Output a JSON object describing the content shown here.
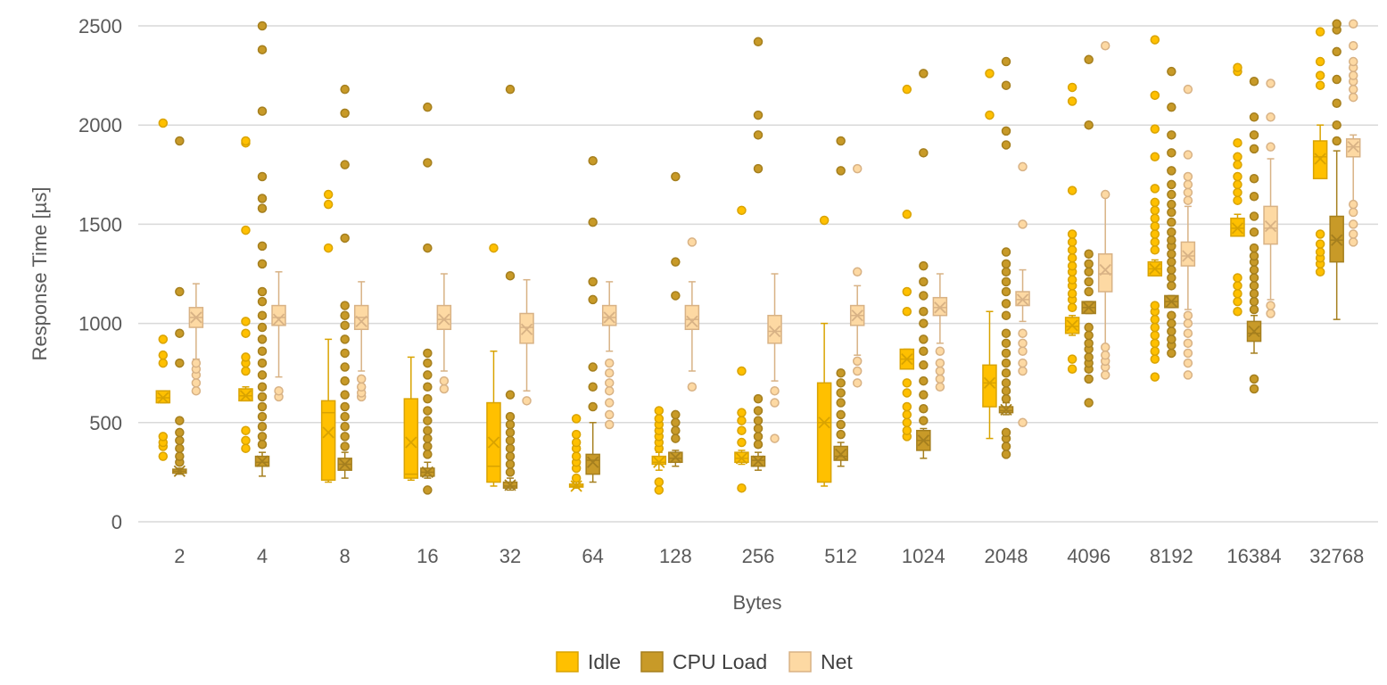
{
  "chart_data": {
    "type": "box",
    "xlabel": "Bytes",
    "ylabel": "Response Time [µs]",
    "ylim": [
      0,
      2500
    ],
    "yticks": [
      0,
      500,
      1000,
      1500,
      2000,
      2500
    ],
    "grid": true,
    "legend_position": "bottom",
    "categories": [
      "2",
      "4",
      "8",
      "16",
      "32",
      "64",
      "128",
      "256",
      "512",
      "1024",
      "2048",
      "4096",
      "8192",
      "16384",
      "32768"
    ],
    "series": [
      {
        "name": "Idle",
        "fill": "#ffc000",
        "stroke": "#d9a300",
        "boxes": [
          {
            "whisker_low": 600,
            "q1": 600,
            "median": 625,
            "q3": 660,
            "whisker_high": 660,
            "mean": 625,
            "outliers": [
              330,
              380,
              400,
              430,
              800,
              840,
              920,
              2010
            ]
          },
          {
            "whisker_low": 610,
            "q1": 610,
            "median": 635,
            "q3": 670,
            "whisker_high": 680,
            "mean": 635,
            "outliers": [
              370,
              410,
              460,
              760,
              800,
              830,
              950,
              1010,
              1470,
              1910,
              1920
            ]
          },
          {
            "whisker_low": 200,
            "q1": 210,
            "median": 550,
            "q3": 610,
            "whisker_high": 920,
            "mean": 450,
            "outliers": [
              1380,
              1600,
              1650
            ]
          },
          {
            "whisker_low": 210,
            "q1": 220,
            "median": 240,
            "q3": 620,
            "whisker_high": 830,
            "mean": 400,
            "outliers": []
          },
          {
            "whisker_low": 180,
            "q1": 200,
            "median": 280,
            "q3": 600,
            "whisker_high": 860,
            "mean": 400,
            "outliers": [
              1380
            ]
          },
          {
            "whisker_low": 170,
            "q1": 175,
            "median": 180,
            "q3": 190,
            "whisker_high": 200,
            "mean": 180,
            "outliers": [
              220,
              270,
              300,
              330,
              370,
              400,
              440,
              520
            ]
          },
          {
            "whisker_low": 260,
            "q1": 290,
            "median": 300,
            "q3": 330,
            "whisker_high": 350,
            "mean": 300,
            "outliers": [
              160,
              200,
              370,
              400,
              430,
              460,
              490,
              520,
              560
            ]
          },
          {
            "whisker_low": 290,
            "q1": 300,
            "median": 320,
            "q3": 350,
            "whisker_high": 360,
            "mean": 320,
            "outliers": [
              170,
              400,
              460,
              510,
              550,
              760,
              1570
            ]
          },
          {
            "whisker_low": 180,
            "q1": 200,
            "median": 500,
            "q3": 700,
            "whisker_high": 1000,
            "mean": 500,
            "outliers": [
              1520
            ]
          },
          {
            "whisker_low": 770,
            "q1": 770,
            "median": 820,
            "q3": 870,
            "whisker_high": 870,
            "mean": 820,
            "outliers": [
              430,
              460,
              500,
              540,
              580,
              650,
              700,
              1060,
              1160,
              1550,
              2180
            ]
          },
          {
            "whisker_low": 420,
            "q1": 580,
            "median": 700,
            "q3": 790,
            "whisker_high": 1060,
            "mean": 700,
            "outliers": [
              2050,
              2260
            ]
          },
          {
            "whisker_low": 940,
            "q1": 950,
            "median": 985,
            "q3": 1030,
            "whisker_high": 1040,
            "mean": 990,
            "outliers": [
              770,
              820,
              1080,
              1120,
              1150,
              1190,
              1220,
              1260,
              1290,
              1330,
              1370,
              1410,
              1450,
              1670,
              2120,
              2190
            ]
          },
          {
            "whisker_low": 1240,
            "q1": 1240,
            "median": 1275,
            "q3": 1310,
            "whisker_high": 1320,
            "mean": 1275,
            "outliers": [
              730,
              820,
              860,
              900,
              940,
              980,
              1020,
              1060,
              1090,
              1370,
              1410,
              1450,
              1490,
              1530,
              1570,
              1610,
              1680,
              1840,
              1980,
              2150,
              2430
            ]
          },
          {
            "whisker_low": 1440,
            "q1": 1440,
            "median": 1480,
            "q3": 1530,
            "whisker_high": 1550,
            "mean": 1480,
            "outliers": [
              1060,
              1110,
              1150,
              1190,
              1230,
              1620,
              1660,
              1700,
              1740,
              1800,
              1840,
              1910,
              2270,
              2290
            ]
          },
          {
            "whisker_low": 1730,
            "q1": 1730,
            "median": 1840,
            "q3": 1920,
            "whisker_high": 2000,
            "mean": 1830,
            "outliers": [
              1260,
              1300,
              1330,
              1360,
              1400,
              1450,
              2200,
              2250,
              2320,
              2470
            ]
          }
        ]
      },
      {
        "name": "CPU Load",
        "fill": "#c89a28",
        "stroke": "#a57f1e",
        "boxes": [
          {
            "whisker_low": 240,
            "q1": 245,
            "median": 255,
            "q3": 265,
            "whisker_high": 270,
            "mean": 255,
            "outliers": [
              300,
              330,
              370,
              410,
              450,
              510,
              800,
              950,
              1160,
              1920
            ]
          },
          {
            "whisker_low": 230,
            "q1": 280,
            "median": 300,
            "q3": 330,
            "whisker_high": 350,
            "mean": 305,
            "outliers": [
              390,
              430,
              480,
              530,
              580,
              630,
              680,
              740,
              800,
              860,
              920,
              980,
              1040,
              1110,
              1160,
              1300,
              1390,
              1580,
              1630,
              1740,
              2070,
              2380,
              2500
            ]
          },
          {
            "whisker_low": 220,
            "q1": 260,
            "median": 290,
            "q3": 320,
            "whisker_high": 350,
            "mean": 290,
            "outliers": [
              380,
              430,
              480,
              530,
              580,
              640,
              710,
              780,
              850,
              920,
              990,
              1040,
              1090,
              1430,
              1800,
              2060,
              2180
            ]
          },
          {
            "whisker_low": 220,
            "q1": 230,
            "median": 250,
            "q3": 270,
            "whisker_high": 300,
            "mean": 250,
            "outliers": [
              160,
              340,
              380,
              420,
              460,
              510,
              560,
              620,
              680,
              740,
              800,
              850,
              1380,
              1810,
              2090
            ]
          },
          {
            "whisker_low": 160,
            "q1": 170,
            "median": 180,
            "q3": 200,
            "whisker_high": 220,
            "mean": 185,
            "outliers": [
              250,
              290,
              330,
              370,
              410,
              450,
              490,
              530,
              640,
              1240,
              2180
            ]
          },
          {
            "whisker_low": 200,
            "q1": 240,
            "median": 310,
            "q3": 340,
            "whisker_high": 500,
            "mean": 300,
            "outliers": [
              580,
              680,
              780,
              1120,
              1210,
              1510,
              1820
            ]
          },
          {
            "whisker_low": 280,
            "q1": 300,
            "median": 320,
            "q3": 350,
            "whisker_high": 360,
            "mean": 325,
            "outliers": [
              420,
              460,
              500,
              540,
              1140,
              1310,
              1740
            ]
          },
          {
            "whisker_low": 260,
            "q1": 280,
            "median": 310,
            "q3": 330,
            "whisker_high": 350,
            "mean": 305,
            "outliers": [
              390,
              430,
              470,
              510,
              560,
              620,
              1780,
              1950,
              2050,
              2420
            ]
          },
          {
            "whisker_low": 280,
            "q1": 310,
            "median": 330,
            "q3": 380,
            "whisker_high": 400,
            "mean": 340,
            "outliers": [
              440,
              490,
              540,
              600,
              650,
              700,
              750,
              1770,
              1920
            ]
          },
          {
            "whisker_low": 320,
            "q1": 360,
            "median": 410,
            "q3": 460,
            "whisker_high": 470,
            "mean": 410,
            "outliers": [
              510,
              570,
              640,
              710,
              790,
              860,
              920,
              1000,
              1060,
              1140,
              1210,
              1290,
              1860,
              2260
            ]
          },
          {
            "whisker_low": 540,
            "q1": 550,
            "median": 560,
            "q3": 580,
            "whisker_high": 600,
            "mean": 565,
            "outliers": [
              340,
              380,
              420,
              450,
              620,
              660,
              700,
              750,
              800,
              850,
              900,
              950,
              1040,
              1100,
              1160,
              1210,
              1260,
              1300,
              1360,
              1900,
              1970,
              2200,
              2320
            ]
          },
          {
            "whisker_low": 1050,
            "q1": 1050,
            "median": 1080,
            "q3": 1110,
            "whisker_high": 1110,
            "mean": 1080,
            "outliers": [
              600,
              720,
              770,
              800,
              830,
              870,
              900,
              940,
              980,
              1160,
              1210,
              1260,
              1300,
              1350,
              2000,
              2330
            ]
          },
          {
            "whisker_low": 1080,
            "q1": 1080,
            "median": 1110,
            "q3": 1140,
            "whisker_high": 1140,
            "mean": 1110,
            "outliers": [
              850,
              890,
              920,
              960,
              1000,
              1040,
              1190,
              1230,
              1270,
              1310,
              1350,
              1390,
              1420,
              1460,
              1510,
              1560,
              1600,
              1650,
              1700,
              1770,
              1860,
              1950,
              2090,
              2270
            ]
          },
          {
            "whisker_low": 850,
            "q1": 910,
            "median": 950,
            "q3": 1010,
            "whisker_high": 1040,
            "mean": 960,
            "outliers": [
              670,
              720,
              1070,
              1110,
              1150,
              1190,
              1230,
              1270,
              1310,
              1340,
              1380,
              1460,
              1540,
              1640,
              1730,
              1880,
              1950,
              2040,
              2220
            ]
          },
          {
            "whisker_low": 1020,
            "q1": 1310,
            "median": 1420,
            "q3": 1540,
            "whisker_high": 1870,
            "mean": 1420,
            "outliers": [
              1920,
              2000,
              2110,
              2230,
              2370,
              2480,
              2510
            ]
          }
        ]
      },
      {
        "name": "Net",
        "fill": "#fdd9a3",
        "stroke": "#d8b285",
        "boxes": [
          {
            "whisker_low": 820,
            "q1": 980,
            "median": 1030,
            "q3": 1080,
            "whisker_high": 1200,
            "mean": 1030,
            "outliers": [
              660,
              700,
              740,
              770,
              800
            ]
          },
          {
            "whisker_low": 730,
            "q1": 990,
            "median": 1030,
            "q3": 1090,
            "whisker_high": 1260,
            "mean": 1020,
            "outliers": [
              630,
              660
            ]
          },
          {
            "whisker_low": 760,
            "q1": 970,
            "median": 1030,
            "q3": 1090,
            "whisker_high": 1210,
            "mean": 1010,
            "outliers": [
              630,
              650,
              680,
              720
            ]
          },
          {
            "whisker_low": 760,
            "q1": 970,
            "median": 1020,
            "q3": 1090,
            "whisker_high": 1250,
            "mean": 1020,
            "outliers": [
              670,
              710
            ]
          },
          {
            "whisker_low": 660,
            "q1": 900,
            "median": 980,
            "q3": 1050,
            "whisker_high": 1220,
            "mean": 970,
            "outliers": [
              610
            ]
          },
          {
            "whisker_low": 860,
            "q1": 990,
            "median": 1030,
            "q3": 1090,
            "whisker_high": 1210,
            "mean": 1030,
            "outliers": [
              490,
              540,
              600,
              660,
              700,
              750,
              800
            ]
          },
          {
            "whisker_low": 760,
            "q1": 970,
            "median": 1020,
            "q3": 1090,
            "whisker_high": 1210,
            "mean": 1010,
            "outliers": [
              680,
              1410
            ]
          },
          {
            "whisker_low": 710,
            "q1": 900,
            "median": 960,
            "q3": 1040,
            "whisker_high": 1250,
            "mean": 960,
            "outliers": [
              420,
              600,
              660
            ]
          },
          {
            "whisker_low": 840,
            "q1": 990,
            "median": 1040,
            "q3": 1090,
            "whisker_high": 1190,
            "mean": 1040,
            "outliers": [
              700,
              760,
              810,
              1260,
              1780
            ]
          },
          {
            "whisker_low": 900,
            "q1": 1040,
            "median": 1080,
            "q3": 1130,
            "whisker_high": 1250,
            "mean": 1080,
            "outliers": [
              680,
              720,
              760,
              800,
              860
            ]
          },
          {
            "whisker_low": 1010,
            "q1": 1090,
            "median": 1120,
            "q3": 1160,
            "whisker_high": 1270,
            "mean": 1120,
            "outliers": [
              500,
              760,
              800,
              860,
              900,
              950,
              1500,
              1790
            ]
          },
          {
            "whisker_low": 880,
            "q1": 1160,
            "median": 1250,
            "q3": 1350,
            "whisker_high": 1640,
            "mean": 1270,
            "outliers": [
              740,
              780,
              810,
              840,
              880,
              1650,
              2400
            ]
          },
          {
            "whisker_low": 1070,
            "q1": 1290,
            "median": 1340,
            "q3": 1410,
            "whisker_high": 1590,
            "mean": 1340,
            "outliers": [
              740,
              800,
              850,
              900,
              950,
              1000,
              1040,
              1620,
              1660,
              1700,
              1740,
              1850,
              2180
            ]
          },
          {
            "whisker_low": 1120,
            "q1": 1400,
            "median": 1480,
            "q3": 1590,
            "whisker_high": 1830,
            "mean": 1490,
            "outliers": [
              1050,
              1090,
              1890,
              2040,
              2210
            ]
          },
          {
            "whisker_low": 1610,
            "q1": 1840,
            "median": 1890,
            "q3": 1930,
            "whisker_high": 1950,
            "mean": 1890,
            "outliers": [
              1410,
              1450,
              1500,
              1560,
              1600,
              2140,
              2180,
              2220,
              2250,
              2290,
              2320,
              2400,
              2510
            ]
          }
        ]
      }
    ]
  }
}
